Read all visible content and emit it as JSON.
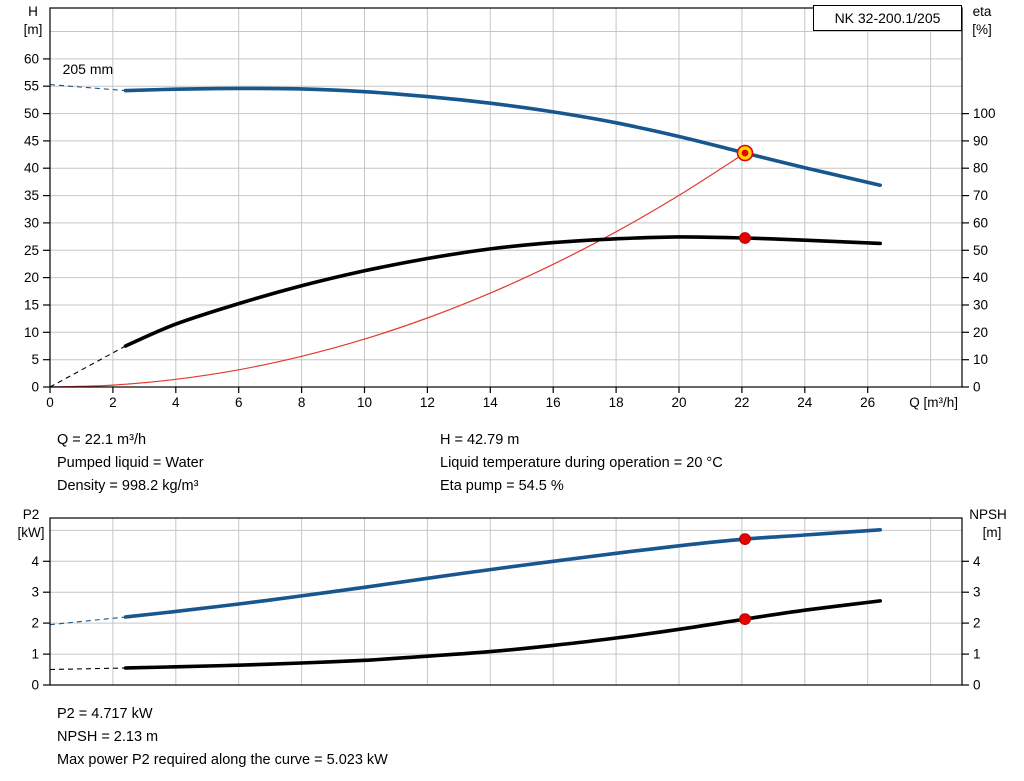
{
  "pump_label": "NK 32-200.1/205",
  "colors": {
    "blue": "#17568f",
    "black": "#000000",
    "red": "#e23b32",
    "marker_red": "#e60000",
    "marker_yellow": "#ffd500",
    "grid": "#c6c6c6",
    "frame": "#000000"
  },
  "info_top": {
    "col1": [
      "Q = 22.1 m³/h",
      "Pumped liquid = Water",
      "Density = 998.2 kg/m³"
    ],
    "col2": [
      "H = 42.79 m",
      "Liquid temperature during operation = 20 °C",
      "Eta pump = 54.5 %"
    ]
  },
  "info_bottom": [
    "P2 = 4.717 kW",
    "NPSH = 2.13 m",
    "Max power P2 required along the curve = 5.023 kW"
  ],
  "chart_data": [
    {
      "name": "qh-eta-chart",
      "type": "line",
      "title": "NK 32-200.1/205",
      "x_axis": {
        "label": "Q [m³/h]",
        "min": 0,
        "max": 29,
        "ticks": [
          0,
          2,
          4,
          6,
          8,
          10,
          12,
          14,
          16,
          18,
          20,
          22,
          24,
          26
        ],
        "grid_extra": [
          28
        ]
      },
      "y_left": {
        "label_lines": [
          "H",
          "[m]"
        ],
        "min": 0,
        "max": 69.3,
        "ticks": [
          0,
          5,
          10,
          15,
          20,
          25,
          30,
          35,
          40,
          45,
          50,
          55,
          60
        ],
        "grid_extra": [
          65
        ]
      },
      "y_right": {
        "label_lines": [
          "eta",
          "[%]"
        ],
        "min": 0,
        "max": 138.6,
        "ticks": [
          0,
          10,
          20,
          30,
          40,
          50,
          60,
          70,
          80,
          90,
          100
        ]
      },
      "annotation": {
        "text": "205 mm",
        "x": 0.4,
        "y": 57.2
      },
      "series": [
        {
          "name": "system-curve",
          "color": "red",
          "width": 1.2,
          "axis": "left",
          "points": [
            [
              0,
              0
            ],
            [
              2,
              0.35
            ],
            [
              4,
              1.4
            ],
            [
              6,
              3.15
            ],
            [
              8,
              5.61
            ],
            [
              10,
              8.76
            ],
            [
              12,
              12.61
            ],
            [
              14,
              17.17
            ],
            [
              16,
              22.43
            ],
            [
              18,
              28.38
            ],
            [
              20,
              35.04
            ],
            [
              22.1,
              42.79
            ]
          ]
        },
        {
          "name": "head-curve",
          "color": "blue",
          "width": 3.6,
          "axis": "left",
          "points": [
            [
              2.4,
              54.2
            ],
            [
              4,
              54.45
            ],
            [
              6,
              54.6
            ],
            [
              8,
              54.5
            ],
            [
              10,
              54.0
            ],
            [
              12,
              53.1
            ],
            [
              14,
              51.9
            ],
            [
              16,
              50.3
            ],
            [
              18,
              48.3
            ],
            [
              20,
              45.8
            ],
            [
              22.1,
              42.79
            ],
            [
              24,
              40.1
            ],
            [
              26.4,
              36.9
            ]
          ],
          "dash_lead": [
            [
              0,
              55.3
            ],
            [
              2.4,
              54.2
            ]
          ]
        },
        {
          "name": "eta-curve",
          "color": "black",
          "width": 3.6,
          "axis": "right",
          "points": [
            [
              2.4,
              15
            ],
            [
              4,
              23
            ],
            [
              6,
              30.5
            ],
            [
              8,
              37
            ],
            [
              10,
              42.5
            ],
            [
              12,
              47
            ],
            [
              14,
              50.5
            ],
            [
              16,
              52.8
            ],
            [
              18,
              54.2
            ],
            [
              20,
              54.9
            ],
            [
              22.1,
              54.5
            ],
            [
              24,
              53.7
            ],
            [
              26.4,
              52.5
            ]
          ],
          "dash_lead": [
            [
              0,
              0
            ],
            [
              2.4,
              15
            ]
          ]
        }
      ],
      "markers": [
        {
          "name": "duty-point-head",
          "x": 22.1,
          "value": 42.79,
          "axis": "left",
          "style": "duty"
        },
        {
          "name": "duty-point-eta",
          "x": 22.1,
          "value": 54.5,
          "axis": "right",
          "style": "dot"
        }
      ]
    },
    {
      "name": "p2-npsh-chart",
      "type": "line",
      "x_axis": {
        "label": "",
        "min": 0,
        "max": 29,
        "ticks": [
          0,
          2,
          4,
          6,
          8,
          10,
          12,
          14,
          16,
          18,
          20,
          22,
          24,
          26
        ],
        "grid_extra": [
          28
        ]
      },
      "y_left": {
        "label_lines": [
          "P2",
          "[kW]"
        ],
        "min": 0,
        "max": 5.4,
        "ticks": [
          0,
          1,
          2,
          3,
          4
        ],
        "grid_extra": [
          5
        ]
      },
      "y_right": {
        "label_lines": [
          "NPSH",
          "[m]"
        ],
        "min": 0,
        "max": 5.4,
        "ticks": [
          0,
          1,
          2,
          3,
          4
        ]
      },
      "series": [
        {
          "name": "p2-curve",
          "color": "blue",
          "width": 3.6,
          "axis": "left",
          "points": [
            [
              2.4,
              2.2
            ],
            [
              4,
              2.38
            ],
            [
              6,
              2.62
            ],
            [
              8,
              2.88
            ],
            [
              10,
              3.16
            ],
            [
              12,
              3.45
            ],
            [
              14,
              3.73
            ],
            [
              16,
              4.0
            ],
            [
              18,
              4.26
            ],
            [
              20,
              4.5
            ],
            [
              22.1,
              4.717
            ],
            [
              24,
              4.85
            ],
            [
              26.4,
              5.02
            ]
          ],
          "dash_lead": [
            [
              0,
              1.95
            ],
            [
              2.4,
              2.2
            ]
          ]
        },
        {
          "name": "npsh-curve",
          "color": "black",
          "width": 3.6,
          "axis": "right",
          "points": [
            [
              2.4,
              0.55
            ],
            [
              4,
              0.59
            ],
            [
              6,
              0.64
            ],
            [
              8,
              0.71
            ],
            [
              10,
              0.8
            ],
            [
              12,
              0.93
            ],
            [
              14,
              1.08
            ],
            [
              16,
              1.28
            ],
            [
              18,
              1.52
            ],
            [
              20,
              1.8
            ],
            [
              22.1,
              2.13
            ],
            [
              24,
              2.42
            ],
            [
              26.4,
              2.72
            ]
          ],
          "dash_lead": [
            [
              0,
              0.5
            ],
            [
              2.4,
              0.55
            ]
          ]
        }
      ],
      "markers": [
        {
          "name": "duty-point-p2",
          "x": 22.1,
          "value": 4.717,
          "axis": "left",
          "style": "dot"
        },
        {
          "name": "duty-point-npsh",
          "x": 22.1,
          "value": 2.13,
          "axis": "right",
          "style": "dot"
        }
      ]
    }
  ]
}
